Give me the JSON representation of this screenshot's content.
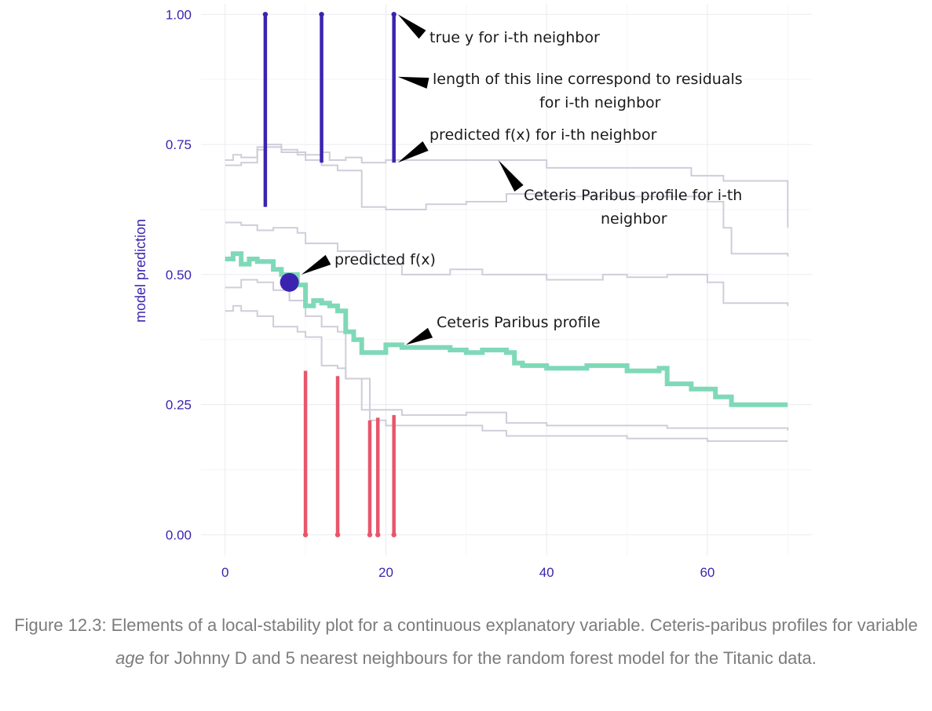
{
  "chart_data": {
    "type": "line",
    "title": "",
    "xlabel": "",
    "ylabel": "model prediction",
    "xlim": [
      -3,
      73
    ],
    "ylim": [
      -0.04,
      1.02
    ],
    "x_ticks": [
      0,
      20,
      40,
      60
    ],
    "x_tick_labels": [
      "0",
      "20",
      "40",
      "60"
    ],
    "y_ticks": [
      0,
      0.25,
      0.5,
      0.75,
      1.0
    ],
    "y_tick_labels": [
      "0.00",
      "0.25",
      "0.50",
      "0.75",
      "1.00"
    ],
    "grid": true,
    "colors": {
      "main_profile": "#7fd9b8",
      "neighbor_profiles": "#cfcdda",
      "positive_residual": "#3b23b0",
      "negative_residual": "#e8566c",
      "observation": "#3b23b0",
      "axis_text": "#3b23b0"
    },
    "series": [
      {
        "name": "Ceteris Paribus profile",
        "x": [
          0,
          1,
          2,
          3,
          4,
          6,
          7,
          9,
          10,
          11,
          12,
          13,
          14,
          15,
          16,
          17,
          20,
          22,
          28,
          30,
          32,
          35,
          36,
          37,
          40,
          45,
          50,
          54,
          55,
          58,
          61,
          63,
          70
        ],
        "y": [
          0.53,
          0.54,
          0.52,
          0.53,
          0.525,
          0.51,
          0.5,
          0.48,
          0.44,
          0.45,
          0.445,
          0.44,
          0.43,
          0.39,
          0.375,
          0.35,
          0.365,
          0.36,
          0.355,
          0.35,
          0.355,
          0.35,
          0.33,
          0.325,
          0.32,
          0.325,
          0.315,
          0.32,
          0.29,
          0.28,
          0.265,
          0.25,
          0.25
        ]
      },
      {
        "x": [
          0,
          1,
          2,
          4,
          5,
          7,
          9,
          12,
          13,
          15,
          17,
          20,
          25,
          30,
          35,
          40,
          50,
          58,
          62,
          70
        ],
        "y": [
          0.72,
          0.73,
          0.725,
          0.745,
          0.75,
          0.74,
          0.73,
          0.735,
          0.72,
          0.725,
          0.715,
          0.72,
          0.72,
          0.72,
          0.72,
          0.705,
          0.705,
          0.69,
          0.68,
          0.59
        ]
      },
      {
        "x": [
          0,
          2,
          4,
          5,
          7,
          10,
          12,
          14,
          17,
          20,
          25,
          30,
          35,
          40,
          50,
          60,
          62,
          63,
          70
        ],
        "y": [
          0.71,
          0.715,
          0.74,
          0.745,
          0.735,
          0.72,
          0.71,
          0.7,
          0.63,
          0.625,
          0.635,
          0.64,
          0.655,
          0.65,
          0.65,
          0.64,
          0.59,
          0.54,
          0.535
        ]
      },
      {
        "x": [
          0,
          2,
          4,
          6,
          9,
          10,
          14,
          18,
          22,
          28,
          32,
          40,
          47,
          50,
          55,
          60,
          62,
          70
        ],
        "y": [
          0.6,
          0.595,
          0.585,
          0.59,
          0.58,
          0.56,
          0.545,
          0.52,
          0.5,
          0.51,
          0.5,
          0.49,
          0.5,
          0.495,
          0.5,
          0.485,
          0.445,
          0.44
        ]
      },
      {
        "x": [
          0,
          2,
          4,
          6,
          8,
          10,
          12,
          14,
          15,
          18,
          22,
          30,
          35,
          40,
          50,
          55,
          60,
          70
        ],
        "y": [
          0.475,
          0.49,
          0.485,
          0.47,
          0.45,
          0.42,
          0.4,
          0.39,
          0.3,
          0.24,
          0.23,
          0.235,
          0.215,
          0.21,
          0.21,
          0.205,
          0.205,
          0.2
        ]
      },
      {
        "x": [
          0,
          1,
          2,
          4,
          6,
          9,
          10,
          12,
          14,
          15,
          17,
          18,
          20,
          25,
          32,
          35,
          45,
          50,
          55,
          60,
          70
        ],
        "y": [
          0.43,
          0.44,
          0.43,
          0.42,
          0.4,
          0.39,
          0.38,
          0.325,
          0.32,
          0.3,
          0.24,
          0.22,
          0.21,
          0.21,
          0.2,
          0.19,
          0.19,
          0.185,
          0.185,
          0.18,
          0.18
        ]
      }
    ],
    "observation": {
      "x": 8,
      "y": 0.485,
      "label": "predicted f(x)"
    },
    "residuals": [
      {
        "x": 5,
        "y_true": 1.0,
        "y_pred": 0.63,
        "sign": "positive"
      },
      {
        "x": 12,
        "y_true": 1.0,
        "y_pred": 0.715,
        "sign": "positive"
      },
      {
        "x": 21,
        "y_true": 1.0,
        "y_pred": 0.715,
        "sign": "positive"
      },
      {
        "x": 10,
        "y_true": 0.0,
        "y_pred": 0.315,
        "sign": "negative"
      },
      {
        "x": 14,
        "y_true": 0.0,
        "y_pred": 0.305,
        "sign": "negative"
      },
      {
        "x": 18,
        "y_true": 0.0,
        "y_pred": 0.22,
        "sign": "negative"
      },
      {
        "x": 19,
        "y_true": 0.0,
        "y_pred": 0.225,
        "sign": "negative"
      },
      {
        "x": 21,
        "y_true": 0.0,
        "y_pred": 0.23,
        "sign": "negative"
      }
    ],
    "annotations": [
      {
        "text": "true y for i-th neighbor",
        "target": [
          21,
          1.0
        ]
      },
      {
        "text": "length of this line correspond to residuals",
        "text2": "for i-th neighbor",
        "target": [
          21,
          0.88
        ]
      },
      {
        "text": "predicted f(x) for i-th neighbor",
        "target": [
          21,
          0.715
        ]
      },
      {
        "text": "Ceteris Paribus profile for  i-th",
        "text2": "neighbor",
        "target": [
          33.5,
          0.72
        ]
      },
      {
        "text": "predicted f(x)",
        "target": [
          9,
          0.5
        ]
      },
      {
        "text": "Ceteris Paribus profile",
        "target": [
          22,
          0.365
        ]
      }
    ]
  },
  "caption": {
    "prefix": "Figure 12.3: Elements of a local-stability plot for a continuous explanatory variable. Ceteris-paribus profiles for variable ",
    "emphasis": "age",
    "suffix": " for Johnny D and 5 nearest neighbours for the random forest model for the Titanic data."
  }
}
